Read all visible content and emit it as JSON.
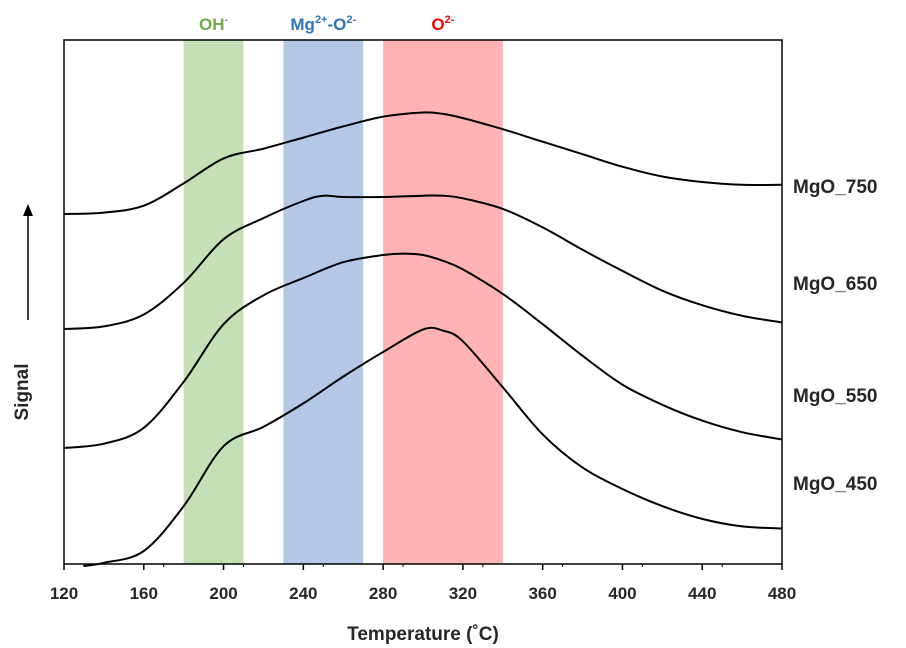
{
  "chart_data": {
    "type": "line",
    "xlabel": "Temperature (˚C)",
    "ylabel": "Signal",
    "xlim": [
      120,
      480
    ],
    "x_ticks": [
      120,
      160,
      200,
      240,
      280,
      320,
      360,
      400,
      440,
      480
    ],
    "y_ticks_shown": false,
    "grid": false,
    "bands": [
      {
        "label": "OH",
        "sup": "-",
        "x_range": [
          180,
          210
        ],
        "color": "#c5e0b4",
        "label_color": "#70ad47"
      },
      {
        "label": "Mg",
        "sup": "2+",
        "label2": "-O",
        "sup2": "2-",
        "x_range": [
          230,
          270
        ],
        "color": "#b4c7e7",
        "label_color": "#2e75b6"
      },
      {
        "label": "O",
        "sup": "2-",
        "x_range": [
          280,
          340
        ],
        "color": "#ffb3b3",
        "label_color": "#ff0000"
      }
    ],
    "series": [
      {
        "name": "MgO_750",
        "x": [
          120,
          140,
          160,
          180,
          200,
          220,
          240,
          260,
          280,
          300,
          310,
          320,
          340,
          360,
          380,
          400,
          420,
          440,
          460,
          480
        ],
        "y": [
          0.0,
          0.01,
          0.06,
          0.22,
          0.4,
          0.47,
          0.55,
          0.63,
          0.7,
          0.73,
          0.72,
          0.69,
          0.61,
          0.52,
          0.43,
          0.34,
          0.27,
          0.23,
          0.21,
          0.21
        ]
      },
      {
        "name": "MgO_650",
        "x": [
          120,
          140,
          160,
          180,
          200,
          220,
          240,
          250,
          260,
          280,
          300,
          310,
          320,
          340,
          360,
          380,
          400,
          420,
          440,
          460,
          480
        ],
        "y": [
          0.0,
          0.02,
          0.11,
          0.35,
          0.68,
          0.84,
          0.97,
          1.01,
          1.0,
          1.0,
          1.01,
          1.01,
          0.99,
          0.91,
          0.77,
          0.6,
          0.44,
          0.29,
          0.18,
          0.1,
          0.05
        ]
      },
      {
        "name": "MgO_550",
        "x": [
          120,
          140,
          160,
          180,
          200,
          220,
          240,
          260,
          280,
          290,
          300,
          310,
          320,
          340,
          360,
          380,
          400,
          420,
          440,
          460,
          480
        ],
        "y": [
          0.0,
          0.03,
          0.14,
          0.46,
          0.86,
          1.06,
          1.18,
          1.29,
          1.34,
          1.35,
          1.34,
          1.3,
          1.24,
          1.07,
          0.86,
          0.64,
          0.44,
          0.3,
          0.19,
          0.11,
          0.06
        ]
      },
      {
        "name": "MgO_450",
        "x": [
          130,
          140,
          160,
          180,
          200,
          220,
          240,
          260,
          280,
          300,
          310,
          320,
          340,
          360,
          380,
          400,
          420,
          440,
          460,
          480
        ],
        "y": [
          0.0,
          0.03,
          0.14,
          0.56,
          1.12,
          1.3,
          1.52,
          1.77,
          2.0,
          2.21,
          2.2,
          2.1,
          1.67,
          1.23,
          0.92,
          0.72,
          0.56,
          0.44,
          0.37,
          0.35
        ]
      }
    ]
  },
  "colors": {
    "curve": "#000000",
    "axis": "#000000",
    "text": "#262626"
  }
}
